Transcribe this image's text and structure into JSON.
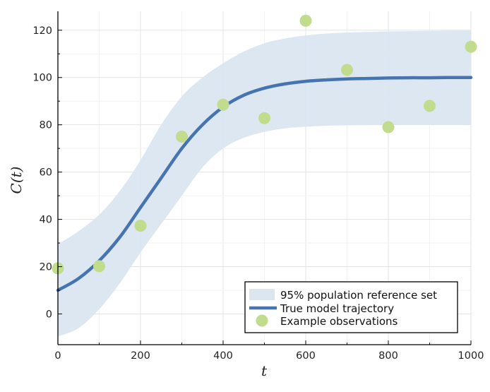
{
  "chart_data": {
    "type": "line",
    "xlabel": "t",
    "ylabel": "C(t)",
    "xlim": [
      0,
      1000
    ],
    "ylim": [
      -13,
      128
    ],
    "xticks": [
      0,
      200,
      400,
      600,
      800,
      1000
    ],
    "xtick_labels": [
      "0",
      "200",
      "400",
      "600",
      "800",
      "1000"
    ],
    "yticks": [
      0,
      20,
      40,
      60,
      80,
      100,
      120
    ],
    "ytick_labels": [
      "0",
      "20",
      "40",
      "60",
      "80",
      "100",
      "120"
    ],
    "grid": true,
    "legend_position": "bottom-right",
    "series": [
      {
        "name": "95% population reference set",
        "kind": "band",
        "color": "#dbe6f1",
        "x": [
          0,
          50,
          100,
          150,
          200,
          250,
          300,
          350,
          400,
          450,
          500,
          550,
          600,
          650,
          700,
          750,
          800,
          850,
          900,
          950,
          1000
        ],
        "lower": [
          -9.5,
          -6,
          2,
          13,
          26,
          38,
          50,
          62,
          70,
          74.5,
          77,
          78.5,
          79.2,
          79.6,
          79.8,
          79.9,
          80,
          80,
          80,
          80,
          80
        ],
        "upper": [
          29.5,
          35,
          42,
          52,
          65,
          80,
          92,
          100,
          106,
          111,
          114.5,
          116.5,
          117.8,
          118.6,
          119,
          119.3,
          119.5,
          119.6,
          119.7,
          119.8,
          119.8
        ]
      },
      {
        "name": "True model trajectory",
        "kind": "line",
        "color": "#4674b0",
        "x": [
          0,
          50,
          100,
          150,
          200,
          250,
          300,
          350,
          400,
          450,
          500,
          550,
          600,
          650,
          700,
          750,
          800,
          850,
          900,
          950,
          1000
        ],
        "y": [
          10,
          15,
          22.5,
          32.5,
          45,
          57.5,
          70,
          80,
          87.5,
          92.5,
          95.5,
          97.3,
          98.4,
          99,
          99.4,
          99.6,
          99.8,
          99.9,
          99.9,
          100,
          100
        ]
      },
      {
        "name": "Example observations",
        "kind": "scatter",
        "color": "#c0dc8c",
        "x": [
          0,
          100,
          200,
          300,
          400,
          500,
          600,
          700,
          800,
          900,
          1000
        ],
        "y": [
          19.3,
          20.2,
          37.3,
          75,
          88.5,
          82.8,
          124,
          103.2,
          79,
          88,
          113
        ]
      }
    ]
  }
}
